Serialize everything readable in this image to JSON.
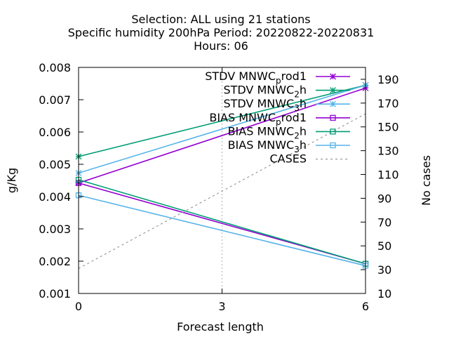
{
  "chart_data": {
    "type": "line",
    "title_lines": [
      "Selection: ALL using    21 stations",
      "Specific humidity 200hPa   Period: 20220822-20220831",
      "Hours:  06"
    ],
    "xlabel": "Forecast length",
    "ylabel": "g/Kg",
    "y2label": "No cases",
    "xlim": [
      0,
      6
    ],
    "ylim": [
      0.001,
      0.008
    ],
    "y2lim": [
      10,
      200
    ],
    "xticks": [
      0,
      3,
      6
    ],
    "yticks": [
      0.001,
      0.002,
      0.003,
      0.004,
      0.005,
      0.006,
      0.007,
      0.008
    ],
    "ytick_labels": [
      "0.001",
      "0.002",
      "0.003",
      "0.004",
      "0.005",
      "0.006",
      "0.007",
      "0.008"
    ],
    "y2ticks": [
      10,
      30,
      50,
      70,
      90,
      110,
      130,
      150,
      170,
      190
    ],
    "grid": true,
    "legend_position": "top-right",
    "x": [
      0,
      6
    ],
    "series": [
      {
        "name": "STDV MNWC_prod1",
        "legend_label": [
          "STDV MNWC",
          "p",
          "rod1"
        ],
        "marker": "star",
        "color": "#9400d3",
        "values": [
          0.00442,
          0.00736
        ]
      },
      {
        "name": "STDV MNWC_2h",
        "legend_label": [
          "STDV MNWC",
          "2",
          "h"
        ],
        "marker": "star",
        "color": "#009e73",
        "values": [
          0.00524,
          0.00745
        ]
      },
      {
        "name": "STDV MNWC_3h",
        "legend_label": [
          "STDV MNWC",
          "3",
          "h"
        ],
        "marker": "star",
        "color": "#56b4e9",
        "values": [
          0.00473,
          0.00745
        ]
      },
      {
        "name": "BIAS MNWC_prod1",
        "legend_label": [
          "BIAS MNWC",
          "p",
          "rod1"
        ],
        "marker": "square",
        "color": "#9400d3",
        "values": [
          0.00442,
          0.00192
        ]
      },
      {
        "name": "BIAS MNWC_2h",
        "legend_label": [
          "BIAS MNWC",
          "2",
          "h"
        ],
        "marker": "square",
        "color": "#009e73",
        "values": [
          0.00452,
          0.00192
        ]
      },
      {
        "name": "BIAS MNWC_3h",
        "legend_label": [
          "BIAS MNWC",
          "3",
          "h"
        ],
        "marker": "square",
        "color": "#56b4e9",
        "values": [
          0.00404,
          0.00186
        ]
      },
      {
        "name": "CASES",
        "legend_label": [
          "CASES",
          "",
          ""
        ],
        "marker": "none",
        "dashed": true,
        "axis": "y2",
        "color": "#999999",
        "values": [
          31,
          161
        ]
      }
    ]
  }
}
